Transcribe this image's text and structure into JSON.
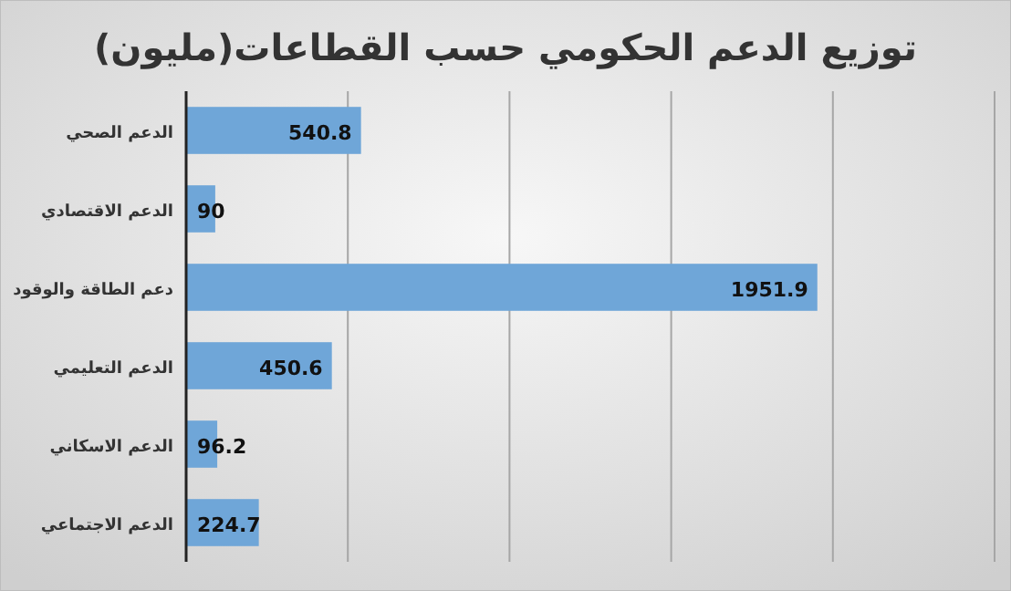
{
  "chart_data": {
    "type": "bar",
    "orientation": "horizontal",
    "title": "توزيع الدعم الحكومي حسب القطاعات(مليون)",
    "categories": [
      "الدعم الصحي",
      "الدعم الاقتصادي",
      "دعم الطاقة والوقود",
      "الدعم التعليمي",
      "الدعم الاسكاني",
      "الدعم الاجتماعي"
    ],
    "values": [
      540.8,
      90,
      1951.9,
      450.6,
      96.2,
      224.7
    ],
    "color": "#6fa6d8",
    "xlim": [
      0,
      2500
    ],
    "xticks": [
      {
        "value": 0,
        "label": null
      },
      {
        "value": 500,
        "label": null
      },
      {
        "value": 1000,
        "label": null
      },
      {
        "value": 1500,
        "label": null
      },
      {
        "value": 2000,
        "label": null
      },
      {
        "value": 2500,
        "label": null
      }
    ],
    "grid": "x",
    "tick_labels": "y",
    "data_labels": true
  }
}
